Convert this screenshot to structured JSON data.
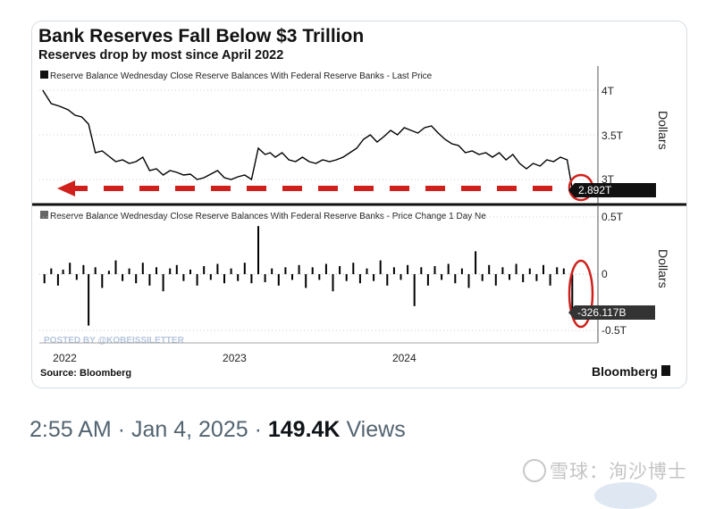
{
  "header": {
    "title": "Bank Reserves Fall Below $3 Trillion",
    "subtitle": "Reserves drop by most since April 2022"
  },
  "tweet": {
    "time": "2:55 AM",
    "sep1": "·",
    "date": "Jan 4, 2025",
    "sep2": "·",
    "views_count": "149.4K",
    "views_label": "Views"
  },
  "watermark": {
    "text": "雪球：洵沙博士"
  },
  "colors": {
    "line": "#000000",
    "annotation_red": "#d0201c",
    "value_tag_bg": "#111111",
    "value_tag_text": "#ffffff",
    "watermark_blue": "#b5c5dc"
  },
  "chart_data": [
    {
      "type": "line",
      "legend": "Reserve Balance Wednesday Close Reserve Balances With Federal Reserve Banks - Last Price",
      "ylabel": "Dollars",
      "yticks": [
        "4T",
        "3.5T",
        "3T"
      ],
      "ytick_values": [
        4,
        3.5,
        3
      ],
      "ylim": [
        2.8,
        4.2
      ],
      "xlim": [
        2021.85,
        2025.02
      ],
      "last_value_label": "2.892T",
      "series": [
        {
          "x": [
            2021.87,
            2021.92,
            2021.97,
            2022.02,
            2022.06,
            2022.1,
            2022.14,
            2022.18,
            2022.22,
            2022.26,
            2022.3,
            2022.34,
            2022.38,
            2022.42,
            2022.46,
            2022.5,
            2022.54,
            2022.58,
            2022.62,
            2022.66,
            2022.7,
            2022.74,
            2022.78,
            2022.82,
            2022.86,
            2022.9,
            2022.94,
            2022.98,
            2023.02,
            2023.06,
            2023.1,
            2023.14,
            2023.18,
            2023.21,
            2023.24,
            2023.28,
            2023.32,
            2023.36,
            2023.4,
            2023.44,
            2023.48,
            2023.52,
            2023.56,
            2023.6,
            2023.64,
            2023.68,
            2023.72,
            2023.76,
            2023.8,
            2023.84,
            2023.88,
            2023.92,
            2023.96,
            2024.0,
            2024.04,
            2024.08,
            2024.12,
            2024.16,
            2024.2,
            2024.24,
            2024.28,
            2024.32,
            2024.36,
            2024.4,
            2024.44,
            2024.48,
            2024.52,
            2024.56,
            2024.6,
            2024.64,
            2024.68,
            2024.72,
            2024.76,
            2024.8,
            2024.84,
            2024.88,
            2024.92,
            2024.96,
            2024.99
          ],
          "y": [
            4.0,
            3.85,
            3.82,
            3.78,
            3.72,
            3.7,
            3.62,
            3.3,
            3.32,
            3.26,
            3.2,
            3.22,
            3.18,
            3.2,
            3.25,
            3.1,
            3.12,
            3.05,
            3.1,
            3.08,
            3.05,
            3.06,
            3.0,
            3.02,
            3.06,
            3.1,
            3.02,
            3.0,
            3.03,
            3.05,
            3.0,
            3.35,
            3.28,
            3.3,
            3.25,
            3.3,
            3.22,
            3.2,
            3.25,
            3.2,
            3.18,
            3.22,
            3.2,
            3.22,
            3.25,
            3.3,
            3.35,
            3.45,
            3.5,
            3.42,
            3.48,
            3.55,
            3.5,
            3.58,
            3.55,
            3.52,
            3.58,
            3.6,
            3.52,
            3.45,
            3.4,
            3.38,
            3.3,
            3.32,
            3.28,
            3.3,
            3.25,
            3.3,
            3.22,
            3.28,
            3.18,
            3.12,
            3.18,
            3.15,
            3.22,
            3.2,
            3.25,
            3.22,
            2.892
          ]
        }
      ]
    },
    {
      "type": "bar",
      "legend": "Reserve Balance Wednesday Close Reserve Balances With Federal Reserve Banks - Price Change 1 Day Ne",
      "ylabel": "Dollars",
      "yticks": [
        "0.5T",
        "0",
        "-0.5T"
      ],
      "ytick_values": [
        0.5,
        0,
        -0.5
      ],
      "ylim": [
        -0.55,
        0.55
      ],
      "xlim": [
        2021.85,
        2025.02
      ],
      "last_value_label": "-326.117B",
      "series": [
        {
          "x": [
            2021.88,
            2021.92,
            2021.96,
            2021.99,
            2022.03,
            2022.07,
            2022.11,
            2022.14,
            2022.18,
            2022.22,
            2022.26,
            2022.3,
            2022.34,
            2022.38,
            2022.42,
            2022.46,
            2022.5,
            2022.54,
            2022.58,
            2022.62,
            2022.66,
            2022.7,
            2022.74,
            2022.78,
            2022.82,
            2022.86,
            2022.9,
            2022.94,
            2022.98,
            2023.02,
            2023.06,
            2023.1,
            2023.14,
            2023.18,
            2023.22,
            2023.26,
            2023.3,
            2023.34,
            2023.38,
            2023.42,
            2023.46,
            2023.5,
            2023.54,
            2023.58,
            2023.62,
            2023.66,
            2023.7,
            2023.74,
            2023.78,
            2023.82,
            2023.86,
            2023.9,
            2023.94,
            2023.98,
            2024.02,
            2024.06,
            2024.1,
            2024.14,
            2024.18,
            2024.22,
            2024.26,
            2024.3,
            2024.34,
            2024.38,
            2024.42,
            2024.46,
            2024.5,
            2024.54,
            2024.58,
            2024.62,
            2024.66,
            2024.7,
            2024.74,
            2024.78,
            2024.82,
            2024.86,
            2024.9,
            2024.94,
            2024.99
          ],
          "y": [
            -0.08,
            0.05,
            -0.1,
            0.04,
            0.1,
            -0.05,
            0.08,
            -0.45,
            0.06,
            -0.12,
            0.03,
            0.12,
            -0.06,
            0.05,
            -0.08,
            0.1,
            -0.1,
            0.06,
            -0.15,
            0.05,
            0.08,
            -0.06,
            0.04,
            -0.1,
            0.07,
            -0.05,
            0.09,
            -0.08,
            0.05,
            -0.06,
            0.1,
            -0.08,
            0.42,
            -0.07,
            0.05,
            -0.1,
            0.06,
            -0.05,
            0.08,
            -0.12,
            0.06,
            -0.05,
            0.09,
            -0.15,
            0.07,
            -0.06,
            0.1,
            -0.08,
            0.05,
            -0.06,
            0.12,
            -0.1,
            0.06,
            -0.05,
            0.08,
            -0.28,
            0.06,
            -0.1,
            0.07,
            -0.05,
            0.09,
            -0.08,
            0.05,
            -0.12,
            0.2,
            -0.06,
            0.08,
            -0.1,
            0.06,
            -0.05,
            0.09,
            -0.07,
            0.05,
            -0.06,
            0.08,
            -0.1,
            0.06,
            0.05,
            -0.326
          ]
        }
      ]
    }
  ],
  "x_axis": {
    "labels": [
      "2022",
      "2023",
      "2024"
    ],
    "label_positions": [
      2022.0,
      2023.0,
      2024.0
    ]
  },
  "footer": {
    "source": "Source: Bloomberg",
    "brand": "Bloomberg",
    "posted_by": "POSTED BY @KOBEISSILETTER"
  }
}
